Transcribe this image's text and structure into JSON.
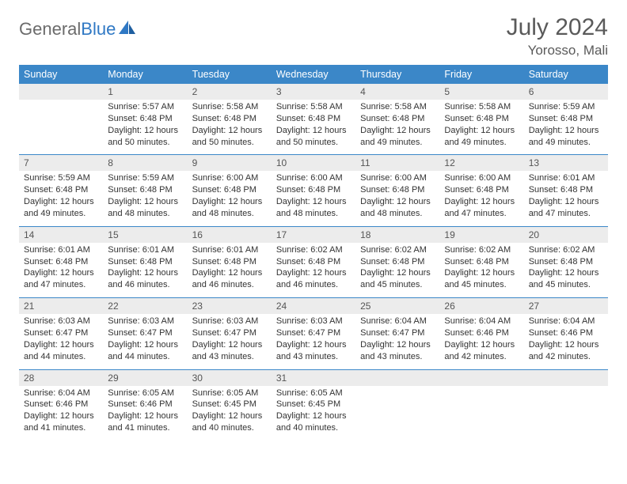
{
  "logo": {
    "word1": "General",
    "word2": "Blue"
  },
  "header": {
    "title": "July 2024",
    "location": "Yorosso, Mali"
  },
  "colors": {
    "header_bar": "#3b87c8",
    "daynum_bg": "#ececec",
    "text": "#333333",
    "title_text": "#5a5a5a",
    "logo_gray": "#6b6b6b",
    "logo_blue": "#2f78c4"
  },
  "daysOfWeek": [
    "Sunday",
    "Monday",
    "Tuesday",
    "Wednesday",
    "Thursday",
    "Friday",
    "Saturday"
  ],
  "weeks": [
    [
      null,
      {
        "n": "1",
        "sr": "5:57 AM",
        "ss": "6:48 PM",
        "dl": "12 hours and 50 minutes."
      },
      {
        "n": "2",
        "sr": "5:58 AM",
        "ss": "6:48 PM",
        "dl": "12 hours and 50 minutes."
      },
      {
        "n": "3",
        "sr": "5:58 AM",
        "ss": "6:48 PM",
        "dl": "12 hours and 50 minutes."
      },
      {
        "n": "4",
        "sr": "5:58 AM",
        "ss": "6:48 PM",
        "dl": "12 hours and 49 minutes."
      },
      {
        "n": "5",
        "sr": "5:58 AM",
        "ss": "6:48 PM",
        "dl": "12 hours and 49 minutes."
      },
      {
        "n": "6",
        "sr": "5:59 AM",
        "ss": "6:48 PM",
        "dl": "12 hours and 49 minutes."
      }
    ],
    [
      {
        "n": "7",
        "sr": "5:59 AM",
        "ss": "6:48 PM",
        "dl": "12 hours and 49 minutes."
      },
      {
        "n": "8",
        "sr": "5:59 AM",
        "ss": "6:48 PM",
        "dl": "12 hours and 48 minutes."
      },
      {
        "n": "9",
        "sr": "6:00 AM",
        "ss": "6:48 PM",
        "dl": "12 hours and 48 minutes."
      },
      {
        "n": "10",
        "sr": "6:00 AM",
        "ss": "6:48 PM",
        "dl": "12 hours and 48 minutes."
      },
      {
        "n": "11",
        "sr": "6:00 AM",
        "ss": "6:48 PM",
        "dl": "12 hours and 48 minutes."
      },
      {
        "n": "12",
        "sr": "6:00 AM",
        "ss": "6:48 PM",
        "dl": "12 hours and 47 minutes."
      },
      {
        "n": "13",
        "sr": "6:01 AM",
        "ss": "6:48 PM",
        "dl": "12 hours and 47 minutes."
      }
    ],
    [
      {
        "n": "14",
        "sr": "6:01 AM",
        "ss": "6:48 PM",
        "dl": "12 hours and 47 minutes."
      },
      {
        "n": "15",
        "sr": "6:01 AM",
        "ss": "6:48 PM",
        "dl": "12 hours and 46 minutes."
      },
      {
        "n": "16",
        "sr": "6:01 AM",
        "ss": "6:48 PM",
        "dl": "12 hours and 46 minutes."
      },
      {
        "n": "17",
        "sr": "6:02 AM",
        "ss": "6:48 PM",
        "dl": "12 hours and 46 minutes."
      },
      {
        "n": "18",
        "sr": "6:02 AM",
        "ss": "6:48 PM",
        "dl": "12 hours and 45 minutes."
      },
      {
        "n": "19",
        "sr": "6:02 AM",
        "ss": "6:48 PM",
        "dl": "12 hours and 45 minutes."
      },
      {
        "n": "20",
        "sr": "6:02 AM",
        "ss": "6:48 PM",
        "dl": "12 hours and 45 minutes."
      }
    ],
    [
      {
        "n": "21",
        "sr": "6:03 AM",
        "ss": "6:47 PM",
        "dl": "12 hours and 44 minutes."
      },
      {
        "n": "22",
        "sr": "6:03 AM",
        "ss": "6:47 PM",
        "dl": "12 hours and 44 minutes."
      },
      {
        "n": "23",
        "sr": "6:03 AM",
        "ss": "6:47 PM",
        "dl": "12 hours and 43 minutes."
      },
      {
        "n": "24",
        "sr": "6:03 AM",
        "ss": "6:47 PM",
        "dl": "12 hours and 43 minutes."
      },
      {
        "n": "25",
        "sr": "6:04 AM",
        "ss": "6:47 PM",
        "dl": "12 hours and 43 minutes."
      },
      {
        "n": "26",
        "sr": "6:04 AM",
        "ss": "6:46 PM",
        "dl": "12 hours and 42 minutes."
      },
      {
        "n": "27",
        "sr": "6:04 AM",
        "ss": "6:46 PM",
        "dl": "12 hours and 42 minutes."
      }
    ],
    [
      {
        "n": "28",
        "sr": "6:04 AM",
        "ss": "6:46 PM",
        "dl": "12 hours and 41 minutes."
      },
      {
        "n": "29",
        "sr": "6:05 AM",
        "ss": "6:46 PM",
        "dl": "12 hours and 41 minutes."
      },
      {
        "n": "30",
        "sr": "6:05 AM",
        "ss": "6:45 PM",
        "dl": "12 hours and 40 minutes."
      },
      {
        "n": "31",
        "sr": "6:05 AM",
        "ss": "6:45 PM",
        "dl": "12 hours and 40 minutes."
      },
      null,
      null,
      null
    ]
  ],
  "labels": {
    "sunrise": "Sunrise: ",
    "sunset": "Sunset: ",
    "daylight": "Daylight: "
  }
}
